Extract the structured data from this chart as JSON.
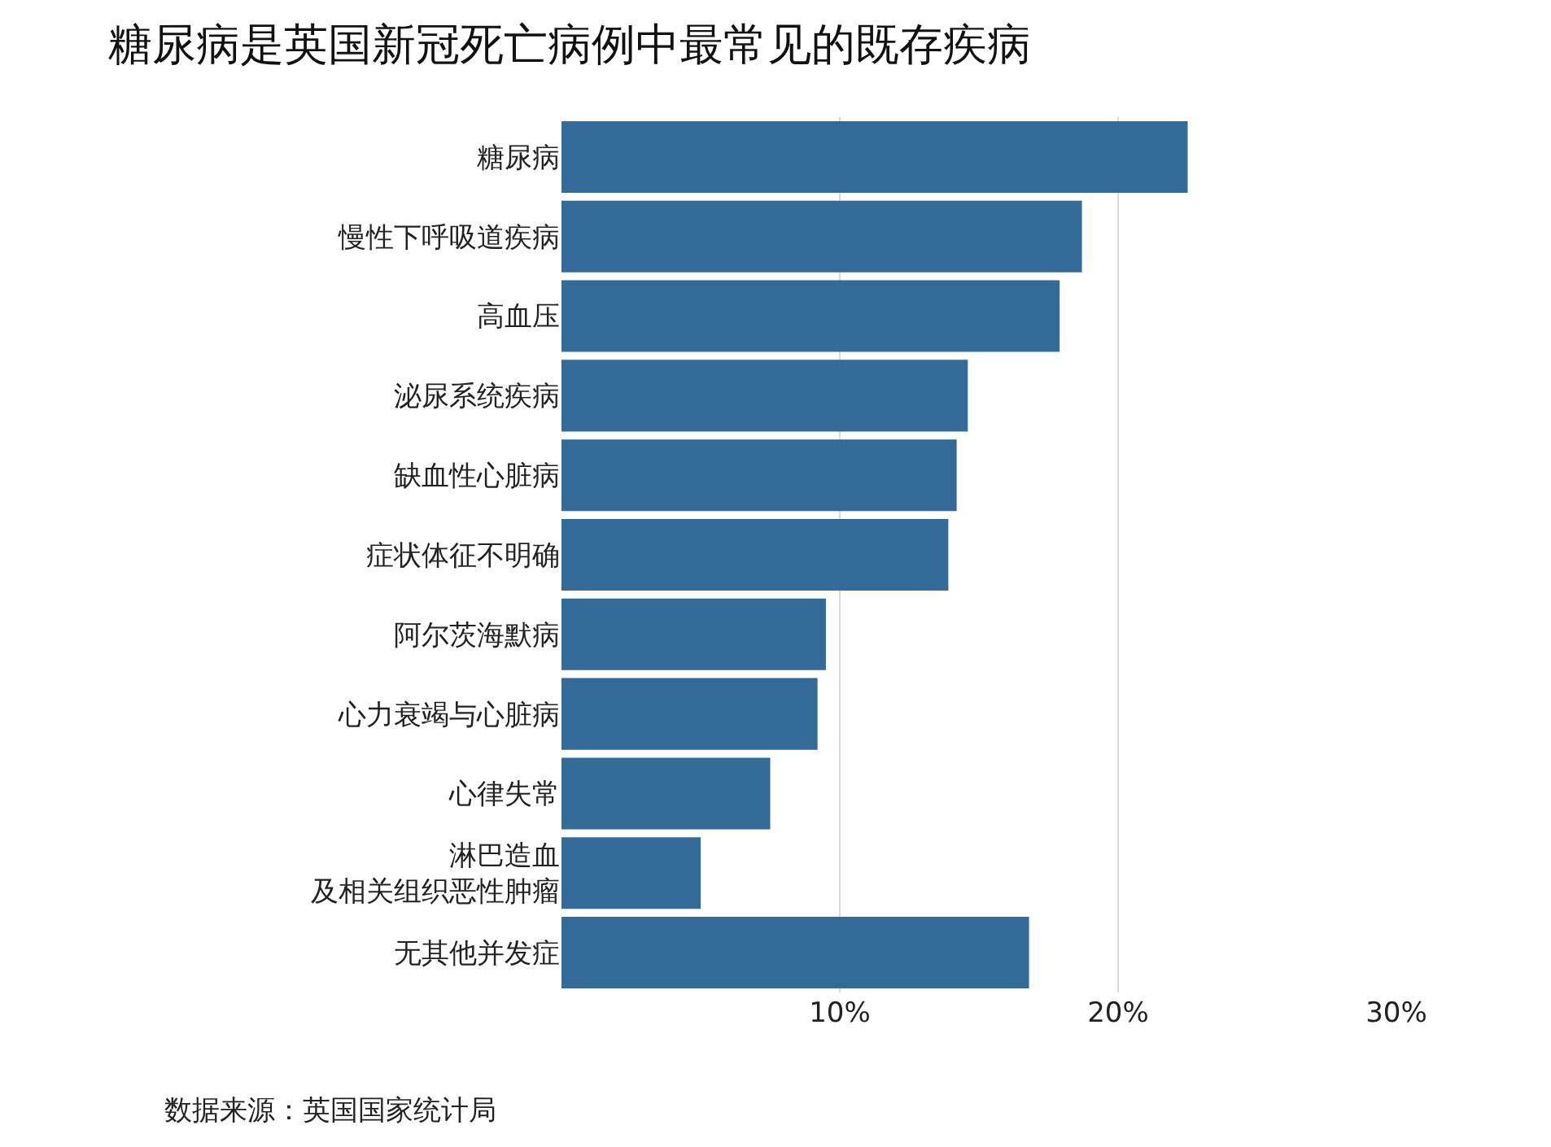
{
  "chart_data": {
    "type": "bar",
    "orientation": "horizontal",
    "title": "糖尿病是英国新冠死亡病例中最常见的既存疾病",
    "categories": [
      "糖尿病",
      "慢性下呼吸道疾病",
      "高血压",
      "泌尿系统疾病",
      "缺血性心脏病",
      "症状体征不明确",
      "阿尔茨海默病",
      "心力衰竭与心脏病",
      "心律失常",
      "淋巴造血及相关组织恶性肿瘤",
      "无其他并发症"
    ],
    "values": [
      22.5,
      18.7,
      17.9,
      14.6,
      14.2,
      13.9,
      9.5,
      9.2,
      7.5,
      5.0,
      16.8
    ],
    "color": "#336a98",
    "xlim": [
      0,
      30
    ],
    "xticks": [
      {
        "value": 10,
        "label": "10%"
      },
      {
        "value": 20,
        "label": "20%"
      },
      {
        "value": 30,
        "label": "30%"
      }
    ],
    "grid": "x",
    "annotations": [
      "数据来源：英国国家统计局"
    ]
  }
}
